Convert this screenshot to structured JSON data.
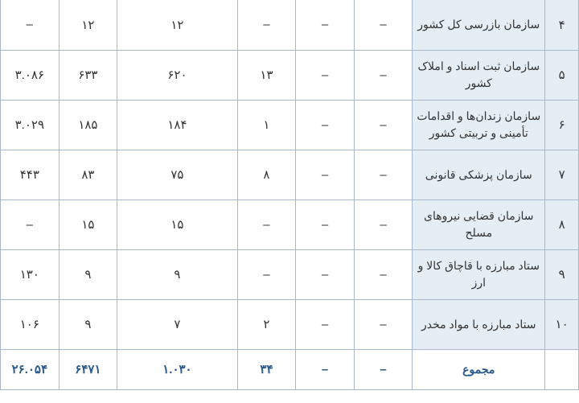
{
  "rows": [
    {
      "idx": "۴",
      "name": "سازمان بازرسی کل کشور",
      "c1": "–",
      "c2": "–",
      "c3": "–",
      "c4": "۱۲",
      "c5": "۱۲",
      "c6": "–"
    },
    {
      "idx": "۵",
      "name": "سازمان ثبت اسناد و املاک کشور",
      "c1": "–",
      "c2": "–",
      "c3": "۱۳",
      "c4": "۶۲۰",
      "c5": "۶۳۳",
      "c6": "۳.۰۸۶"
    },
    {
      "idx": "۶",
      "name": "سازمان زندان‌ها و اقدامات تأمینی و تربیتی کشور",
      "c1": "–",
      "c2": "–",
      "c3": "۱",
      "c4": "۱۸۴",
      "c5": "۱۸۵",
      "c6": "۳.۰۲۹"
    },
    {
      "idx": "۷",
      "name": "سازمان پزشکی قانونی",
      "c1": "–",
      "c2": "–",
      "c3": "۸",
      "c4": "۷۵",
      "c5": "۸۳",
      "c6": "۴۴۳"
    },
    {
      "idx": "۸",
      "name": "سازمان قضایی نیروهای مسلح",
      "c1": "–",
      "c2": "–",
      "c3": "–",
      "c4": "۱۵",
      "c5": "۱۵",
      "c6": "–"
    },
    {
      "idx": "۹",
      "name": "ستاد مبارزه با قاچاق کالا و ارز",
      "c1": "–",
      "c2": "–",
      "c3": "–",
      "c4": "۹",
      "c5": "۹",
      "c6": "۱۳۰"
    },
    {
      "idx": "۱۰",
      "name": "ستاد مبارزه با مواد مخدر",
      "c1": "–",
      "c2": "–",
      "c3": "۲",
      "c4": "۷",
      "c5": "۹",
      "c6": "۱۰۶"
    }
  ],
  "total": {
    "idx": "",
    "name": "مجموع",
    "c1": "–",
    "c2": "–",
    "c3": "۳۴",
    "c4": "۱.۰۳۰",
    "c5": "۶۴۷۱",
    "c6": "۲۶.۰۵۴"
  }
}
